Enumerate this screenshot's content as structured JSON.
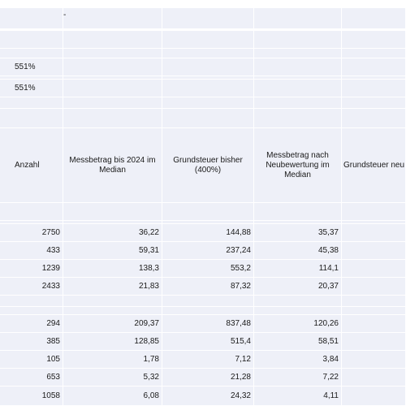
{
  "sheet": {
    "top_marker": "-",
    "rates": [
      "551%",
      "551%"
    ],
    "headers": [
      "Anzahl",
      "Messbetrag bis 2024 im Median",
      "Grundsteuer bisher (400%)",
      "Messbetrag nach Neubewertung im Median",
      "Grundsteuer neu ("
    ],
    "group1": [
      [
        "2750",
        "36,22",
        "144,88",
        "35,37"
      ],
      [
        "433",
        "59,31",
        "237,24",
        "45,38"
      ],
      [
        "1239",
        "138,3",
        "553,2",
        "114,1"
      ],
      [
        "2433",
        "21,83",
        "87,32",
        "20,37"
      ]
    ],
    "group2": [
      [
        "294",
        "209,37",
        "837,48",
        "120,26"
      ],
      [
        "385",
        "128,85",
        "515,4",
        "58,51"
      ],
      [
        "105",
        "1,78",
        "7,12",
        "3,84"
      ],
      [
        "653",
        "5,32",
        "21,28",
        "7,22"
      ],
      [
        "1058",
        "6,08",
        "24,32",
        "4,11"
      ]
    ]
  }
}
